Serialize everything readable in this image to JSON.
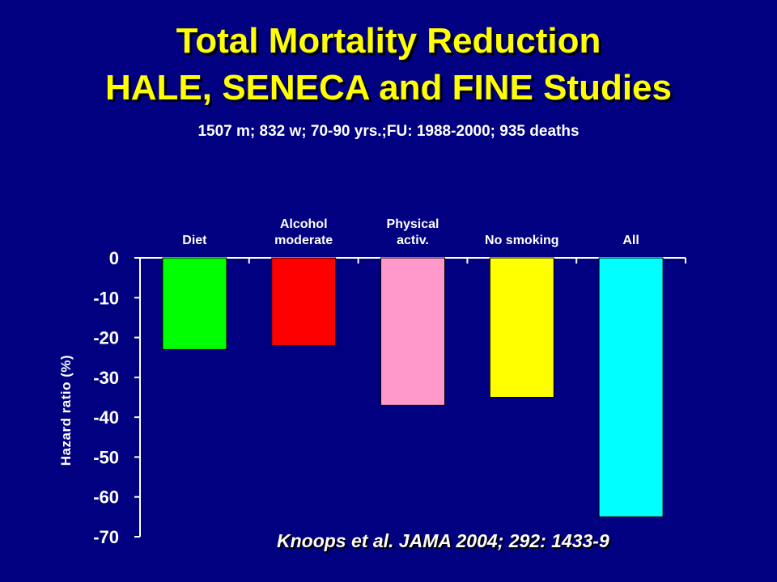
{
  "title_line1": "Total Mortality Reduction",
  "title_line2": "HALE, SENECA and FINE Studies",
  "subtitle": "1507 m; 832 w; 70-90 yrs.;FU: 1988-2000; 935 deaths",
  "citation": "Knoops et al. JAMA 2004; 292: 1433-9",
  "chart_data": {
    "type": "bar",
    "ylabel": "Hazard ratio (%)",
    "ylim": [
      -70,
      0
    ],
    "yticks": [
      0,
      -10,
      -20,
      -30,
      -40,
      -50,
      -60,
      -70
    ],
    "grid": false,
    "categories": [
      [
        "Diet"
      ],
      [
        "Alcohol",
        "moderate"
      ],
      [
        "Physical",
        "activ."
      ],
      [
        "No smoking"
      ],
      [
        "All"
      ]
    ],
    "values": [
      -23,
      -22,
      -37,
      -35,
      -65
    ],
    "colors": [
      "#00ff00",
      "#ff0000",
      "#ff99cc",
      "#ffff00",
      "#00ffff"
    ]
  }
}
